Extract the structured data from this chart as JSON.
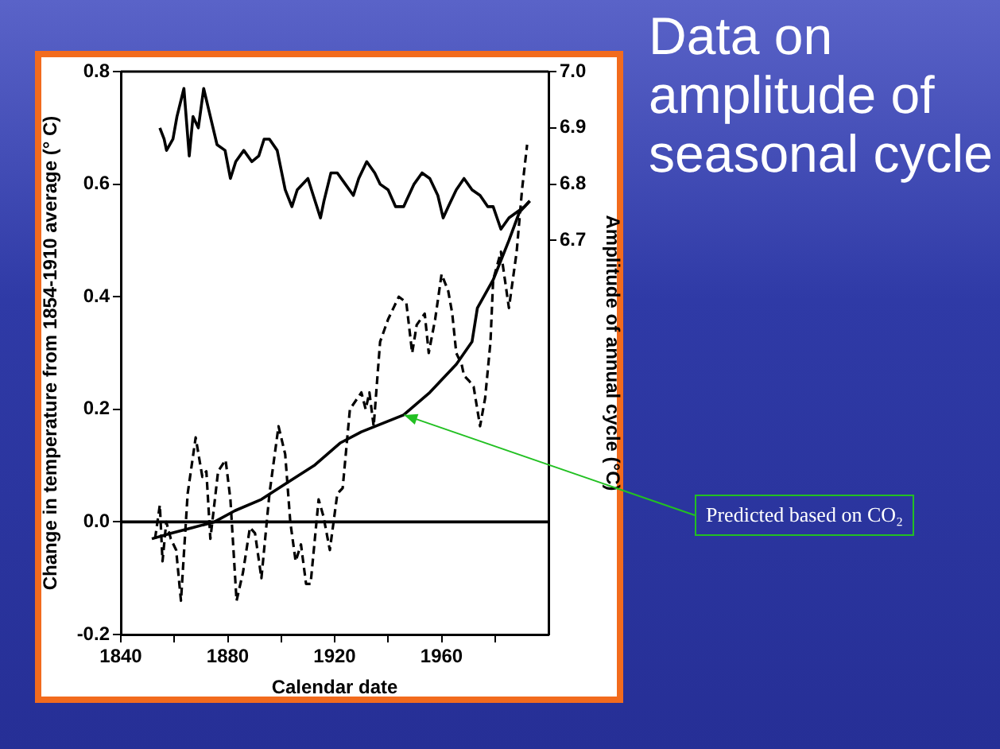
{
  "chart_data": {
    "type": "line",
    "title": "Data on amplitude of seasonal cycle",
    "xlabel": "Calendar date",
    "ylabel": "Change in temperature from 1854-1910 average (° C)",
    "y2label": "Amplitude of annual cycle (°C)",
    "xlim": [
      1840,
      2000
    ],
    "xticks": [
      1840,
      {
        "value": 1860,
        "label": null
      },
      1880,
      {
        "value": 1900,
        "label": null
      },
      1920,
      {
        "value": 1940,
        "label": null
      },
      1960,
      {
        "value": 1980,
        "label": null
      }
    ],
    "ylim": [
      -0.2,
      0.8
    ],
    "yticks": [
      {
        "value": -0.2,
        "label": "-0.2"
      },
      {
        "value": 0,
        "label": "0.0"
      },
      0.2,
      0.4,
      0.6,
      0.8
    ],
    "y2lim": [
      6.0,
      7.0
    ],
    "y2ticks": [
      6.7,
      6.8,
      6.9,
      {
        "value": 7.0,
        "label": "7.0"
      }
    ],
    "grid": false,
    "legend": false,
    "marker": "none",
    "ref_lines": [
      {
        "axis": "y",
        "value": 0,
        "color": "#000000",
        "line_style": "solid"
      }
    ],
    "annotations": [
      {
        "text": "Predicted based on CO₂",
        "x": 1946,
        "y": 0.19
      }
    ],
    "series": [
      {
        "color": "#000000",
        "axis": "y2",
        "line_style": "solid",
        "x": [
          1854.6,
          1856.2,
          1857.1,
          1859.5,
          1861,
          1863.6,
          1865.6,
          1867,
          1869,
          1871,
          1873,
          1876,
          1879,
          1881,
          1883,
          1886,
          1889,
          1891.6,
          1893.6,
          1895.6,
          1898.5,
          1901.5,
          1904,
          1906,
          1910,
          1912,
          1914.7,
          1916,
          1918.6,
          1921,
          1924,
          1927,
          1929,
          1932,
          1935,
          1937,
          1940,
          1942.8,
          1945.8,
          1949.7,
          1952.7,
          1955.6,
          1958.6,
          1960.6,
          1962.5,
          1965.5,
          1968.4,
          1971.4,
          1974.4,
          1977.3,
          1979.3,
          1982.2,
          1985.2,
          1988.1,
          1991,
          1993
        ],
        "values": [
          6.9,
          6.88,
          6.86,
          6.88,
          6.92,
          6.97,
          6.85,
          6.92,
          6.9,
          6.97,
          6.93,
          6.87,
          6.86,
          6.81,
          6.84,
          6.86,
          6.84,
          6.85,
          6.88,
          6.88,
          6.86,
          6.79,
          6.76,
          6.79,
          6.81,
          6.78,
          6.74,
          6.77,
          6.82,
          6.82,
          6.8,
          6.78,
          6.81,
          6.84,
          6.82,
          6.8,
          6.79,
          6.76,
          6.76,
          6.8,
          6.82,
          6.81,
          6.78,
          6.74,
          6.76,
          6.79,
          6.81,
          6.79,
          6.78,
          6.76,
          6.76,
          6.72,
          6.74,
          6.75,
          6.76,
          6.77
        ]
      },
      {
        "color": "#000000",
        "axis": "y",
        "line_style": "dashed",
        "x": [
          1852.8,
          1854.6,
          1855.6,
          1857,
          1858.7,
          1860.7,
          1862.5,
          1865,
          1868,
          1870.5,
          1872,
          1873.5,
          1876.4,
          1879.2,
          1881,
          1883.3,
          1885.7,
          1888.3,
          1890.2,
          1892.6,
          1895.6,
          1899,
          1901.5,
          1903.4,
          1905.4,
          1907.4,
          1909.3,
          1911,
          1914,
          1915.8,
          1918.2,
          1921,
          1923,
          1925.7,
          1930,
          1931.6,
          1933,
          1934.6,
          1937,
          1940,
          1942,
          1944,
          1946.8,
          1949,
          1950.7,
          1953.7,
          1955.2,
          1957.6,
          1960,
          1962.5,
          1964,
          1965.5,
          1967.5,
          1968.4,
          1970.4,
          1972,
          1974.4,
          1976.3,
          1978.3,
          1979.3,
          1982.2,
          1985.2,
          1988.1,
          1990.1,
          1992
        ],
        "values": [
          -0.03,
          0.03,
          -0.07,
          0,
          -0.03,
          -0.05,
          -0.14,
          0.05,
          0.15,
          0.08,
          0.09,
          -0.03,
          0.09,
          0.11,
          0.04,
          -0.14,
          -0.09,
          -0.01,
          -0.02,
          -0.1,
          0.05,
          0.17,
          0.12,
          0,
          -0.07,
          -0.04,
          -0.11,
          -0.11,
          0.04,
          0.01,
          -0.05,
          0.05,
          0.06,
          0.2,
          0.23,
          0.2,
          0.23,
          0.17,
          0.32,
          0.36,
          0.38,
          0.4,
          0.39,
          0.3,
          0.35,
          0.37,
          0.3,
          0.36,
          0.44,
          0.41,
          0.37,
          0.3,
          0.28,
          0.26,
          0.25,
          0.24,
          0.17,
          0.22,
          0.32,
          0.43,
          0.48,
          0.38,
          0.48,
          0.59,
          0.67
        ]
      },
      {
        "color": "#000000",
        "axis": "y",
        "line_style": "solid",
        "x": [
          1851.6,
          1859,
          1867,
          1875,
          1882.7,
          1892.6,
          1902.4,
          1912.3,
          1922,
          1930,
          1945.8,
          1955.6,
          1965.5,
          1971.4,
          1973.4,
          1979.3,
          1985.2,
          1989.1,
          1993
        ],
        "values": [
          -0.03,
          -0.02,
          -0.01,
          0,
          0.02,
          0.04,
          0.07,
          0.1,
          0.14,
          0.16,
          0.19,
          0.23,
          0.28,
          0.32,
          0.38,
          0.43,
          0.5,
          0.55,
          0.57
        ]
      }
    ]
  }
}
